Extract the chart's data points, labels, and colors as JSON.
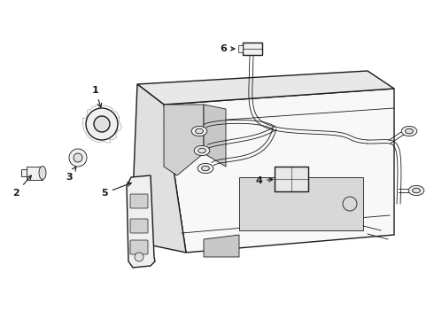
{
  "background_color": "#ffffff",
  "line_color": "#1a1a1a",
  "figsize": [
    4.9,
    3.6
  ],
  "dpi": 100,
  "xlim": [
    0,
    490
  ],
  "ylim": [
    0,
    360
  ]
}
